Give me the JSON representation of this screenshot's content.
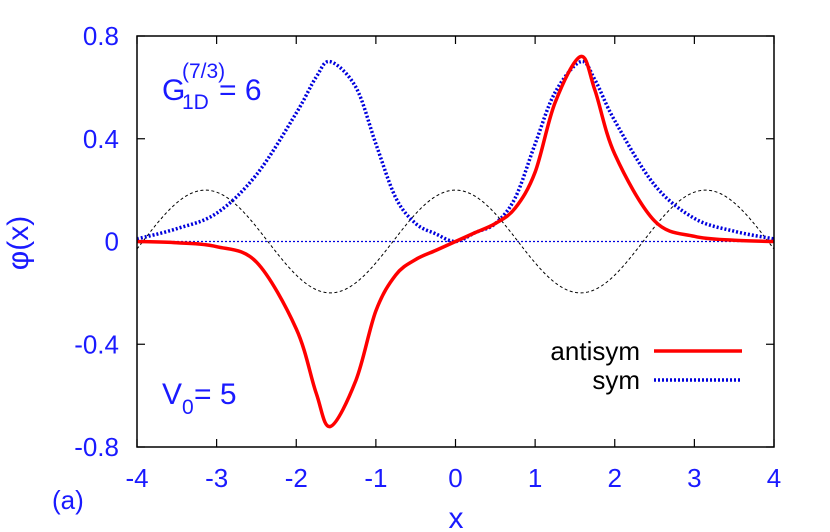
{
  "chart_data": {
    "type": "line",
    "xlabel": "x",
    "ylabel": "φ(x)",
    "panel_label": "(a)",
    "xlim": [
      -4,
      4
    ],
    "ylim": [
      -0.8,
      0.8
    ],
    "xticks": [
      -4,
      -3,
      -2,
      -1,
      0,
      1,
      2,
      3,
      4
    ],
    "xtick_labels": [
      "-4",
      "-3",
      "-2",
      "-1",
      "0",
      "1",
      "2",
      "3",
      "4"
    ],
    "yticks": [
      -0.8,
      -0.4,
      0,
      0.4,
      0.8
    ],
    "ytick_labels": [
      "-0.8",
      "-0.4",
      "0",
      "0.4",
      "0.8"
    ],
    "x": [
      -4.0,
      -3.5,
      -3.0,
      -2.5,
      -2.0,
      -1.75,
      -1.5708,
      -1.25,
      -1.0,
      -0.75,
      -0.5,
      -0.25,
      0.0,
      0.25,
      0.5,
      0.75,
      1.0,
      1.25,
      1.5708,
      1.75,
      2.0,
      2.5,
      3.0,
      3.5,
      4.0
    ],
    "series": [
      {
        "name": "antisym",
        "color": "#ff0000",
        "style": "solid",
        "values": [
          0.0,
          -0.005,
          -0.02,
          -0.08,
          -0.34,
          -0.59,
          -0.72,
          -0.54,
          -0.27,
          -0.13,
          -0.07,
          -0.035,
          0.0,
          0.035,
          0.07,
          0.13,
          0.27,
          0.54,
          0.72,
          0.59,
          0.34,
          0.08,
          0.02,
          0.005,
          0.0
        ]
      },
      {
        "name": "sym",
        "color": "#0000dd",
        "style": "dotted",
        "values": [
          0.01,
          0.05,
          0.11,
          0.26,
          0.5,
          0.64,
          0.7,
          0.6,
          0.38,
          0.17,
          0.07,
          0.03,
          0.0,
          0.035,
          0.07,
          0.17,
          0.38,
          0.58,
          0.7,
          0.63,
          0.47,
          0.22,
          0.09,
          0.04,
          0.01
        ]
      }
    ],
    "potential_curve": {
      "color": "#000000",
      "style": "dashed",
      "amplitude": 0.2,
      "period": 3.1416
    },
    "zero_line": {
      "color": "#0000dd",
      "style": "dotted",
      "y": 0
    },
    "annotations": {
      "g_base": "G",
      "g_sub": "1D",
      "g_sup": "(7/3)",
      "g_value": " = 6",
      "v_base": "V",
      "v_sub": "0",
      "v_value": " = 5"
    },
    "legend": {
      "placement": "bottom-right",
      "entries": [
        "antisym",
        "sym"
      ]
    }
  }
}
